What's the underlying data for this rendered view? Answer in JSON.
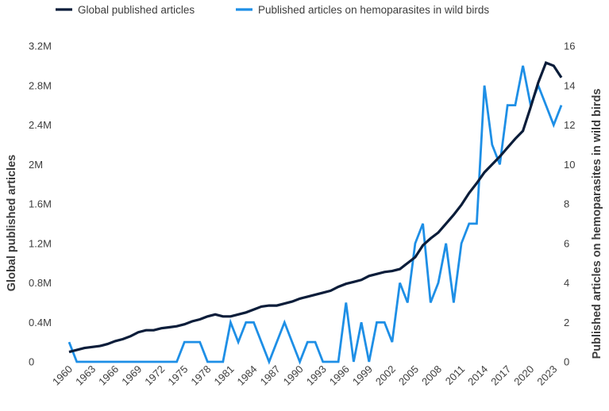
{
  "chart_data": {
    "type": "line",
    "title": "",
    "x": [
      1960,
      1961,
      1962,
      1963,
      1964,
      1965,
      1966,
      1967,
      1968,
      1969,
      1970,
      1971,
      1972,
      1973,
      1974,
      1975,
      1976,
      1977,
      1978,
      1979,
      1980,
      1981,
      1982,
      1983,
      1984,
      1985,
      1986,
      1987,
      1988,
      1989,
      1990,
      1991,
      1992,
      1993,
      1994,
      1995,
      1996,
      1997,
      1998,
      1999,
      2000,
      2001,
      2002,
      2003,
      2004,
      2005,
      2006,
      2007,
      2008,
      2009,
      2010,
      2011,
      2012,
      2013,
      2014,
      2015,
      2016,
      2017,
      2018,
      2019,
      2020,
      2021,
      2022,
      2023,
      2024
    ],
    "x_tick_labels": [
      "1960",
      "1963",
      "1966",
      "1969",
      "1972",
      "1975",
      "1978",
      "1981",
      "1984",
      "1987",
      "1990",
      "1993",
      "1996",
      "1999",
      "2002",
      "2005",
      "2008",
      "2011",
      "2014",
      "2017",
      "2020",
      "2023"
    ],
    "y_left": {
      "label": "Global published articles",
      "ylim": [
        0,
        3200000
      ],
      "tick_values": [
        0,
        400000,
        800000,
        1200000,
        1600000,
        2000000,
        2400000,
        2800000,
        3200000
      ],
      "tick_labels": [
        "0",
        "0.4M",
        "0.8M",
        "1.2M",
        "1.6M",
        "2M",
        "2.4M",
        "2.8M",
        "3.2M"
      ]
    },
    "y_right": {
      "label": "Published articles on hemoparasites in wild birds",
      "ylim": [
        0,
        16
      ],
      "tick_values": [
        0,
        2,
        4,
        6,
        8,
        10,
        12,
        14,
        16
      ],
      "tick_labels": [
        "0",
        "2",
        "4",
        "6",
        "8",
        "10",
        "12",
        "14",
        "16"
      ]
    },
    "series": [
      {
        "name": "Global published articles",
        "axis": "left",
        "color": "#0b1d3a",
        "values": [
          100000,
          120000,
          140000,
          150000,
          160000,
          180000,
          210000,
          230000,
          260000,
          300000,
          320000,
          320000,
          340000,
          350000,
          360000,
          380000,
          410000,
          430000,
          460000,
          480000,
          460000,
          460000,
          480000,
          500000,
          530000,
          560000,
          570000,
          570000,
          590000,
          610000,
          640000,
          660000,
          680000,
          700000,
          720000,
          760000,
          790000,
          810000,
          830000,
          870000,
          890000,
          910000,
          920000,
          940000,
          1000000,
          1060000,
          1180000,
          1250000,
          1310000,
          1400000,
          1490000,
          1590000,
          1710000,
          1810000,
          1920000,
          2000000,
          2080000,
          2170000,
          2260000,
          2340000,
          2580000,
          2830000,
          3030000,
          3000000,
          2880000
        ]
      },
      {
        "name": "Published articles on hemoparasites in wild birds",
        "axis": "right",
        "color": "#1e8fe6",
        "values": [
          1,
          0,
          0,
          0,
          0,
          0,
          0,
          0,
          0,
          0,
          0,
          0,
          0,
          0,
          0,
          1,
          1,
          1,
          0,
          0,
          0,
          2,
          1,
          2,
          2,
          1,
          0,
          1,
          2,
          1,
          0,
          1,
          1,
          0,
          0,
          0,
          3,
          0,
          2,
          0,
          2,
          2,
          1,
          4,
          3,
          6,
          7,
          3,
          4,
          6,
          3,
          6,
          7,
          7,
          14,
          11,
          10,
          13,
          13,
          15,
          13,
          14,
          13,
          12,
          13
        ]
      }
    ],
    "legend": {
      "placement": "top",
      "entries": [
        "Global published articles",
        "Published articles on hemoparasites in wild birds"
      ]
    },
    "grid": false
  }
}
